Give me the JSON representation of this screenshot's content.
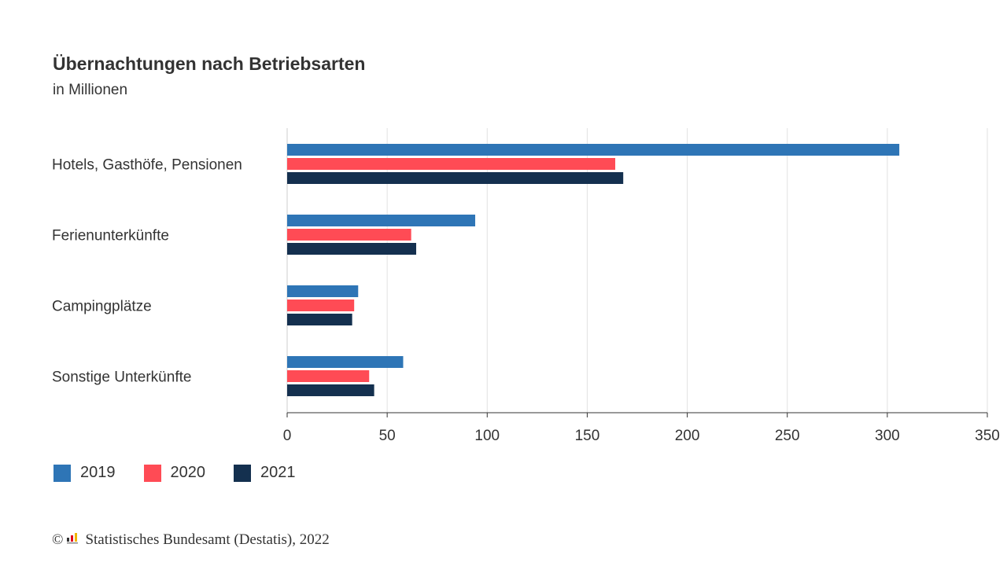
{
  "chart_data": {
    "type": "bar",
    "orientation": "horizontal",
    "title": "Übernachtungen nach Betriebsarten",
    "subtitle": "in Millionen",
    "categories": [
      "Hotels, Gasthöfe, Pensionen",
      "Ferienunterkünfte",
      "Campingplätze",
      "Sonstige Unterkünfte"
    ],
    "series": [
      {
        "name": "2019",
        "color": "#2e75b6",
        "values": [
          306,
          94,
          35.5,
          58
        ]
      },
      {
        "name": "2020",
        "color": "#ff4b55",
        "values": [
          164,
          62,
          33.5,
          41
        ]
      },
      {
        "name": "2021",
        "color": "#14304f",
        "values": [
          168,
          64.5,
          32.5,
          43.5
        ]
      }
    ],
    "xlim": [
      0,
      350
    ],
    "xticks": [
      "0",
      "50",
      "100",
      "150",
      "200",
      "250",
      "300",
      "350"
    ],
    "grid": true,
    "legend_position": "bottom-left"
  },
  "source": {
    "copyright_symbol": "©",
    "text": "Statistisches Bundesamt (Destatis), 2022"
  }
}
